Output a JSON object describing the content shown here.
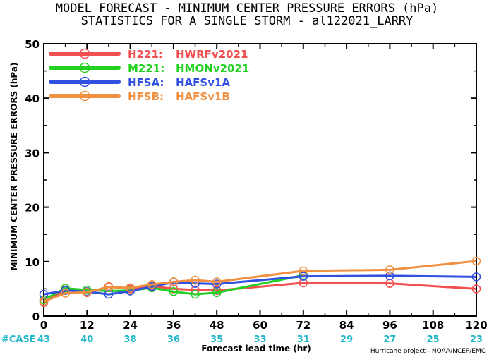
{
  "chart_data": {
    "type": "line",
    "title": "MODEL FORECAST - MINIMUM CENTER PRESSURE ERRORS (hPa)",
    "subtitle": "STATISTICS FOR A SINGLE STORM - al122021_LARRY",
    "xlabel": "Forecast lead time (hr)",
    "ylabel": "MINIMUM CENTER PRESSURE ERRORS (hPa)",
    "xlim": [
      0,
      120
    ],
    "ylim": [
      0,
      50
    ],
    "x_ticks": [
      0,
      12,
      24,
      36,
      48,
      60,
      72,
      84,
      96,
      108,
      120
    ],
    "y_ticks": [
      0,
      10,
      20,
      30,
      40,
      50
    ],
    "grid": false,
    "legend_position": "top-left",
    "case_label": "#CASE",
    "case_counts": [
      "43",
      "40",
      "38",
      "36",
      "35",
      "33",
      "31",
      "29",
      "27",
      "25",
      "23"
    ],
    "credit": "Hurricane project - NOAA/NCEP/EMC",
    "series": [
      {
        "name": "H221:  HWRFv2021",
        "code": "H221:",
        "model": "HWRFv2021",
        "color": "#f05050",
        "x": [
          0,
          6,
          12,
          18,
          24,
          30,
          36,
          42,
          48,
          72,
          96,
          120
        ],
        "y": [
          2.5,
          4.8,
          4.3,
          5.4,
          5.0,
          5.5,
          5.0,
          4.8,
          4.7,
          6.1,
          6.0,
          5.0
        ]
      },
      {
        "name": "M221:  HMONv2021",
        "code": "M221:",
        "model": "HMONv2021",
        "color": "#22d022",
        "x": [
          0,
          6,
          12,
          18,
          24,
          30,
          36,
          42,
          48,
          72
        ],
        "y": [
          3.0,
          5.1,
          4.8,
          4.6,
          4.7,
          5.2,
          4.5,
          4.0,
          4.3,
          7.5
        ]
      },
      {
        "name": "HFSA:  HAFSv1A",
        "code": "HFSA:",
        "model": "HAFSv1A",
        "color": "#3050e0",
        "x": [
          0,
          6,
          12,
          18,
          24,
          30,
          36,
          42,
          48,
          72,
          96,
          120
        ],
        "y": [
          4.0,
          4.7,
          4.5,
          4.0,
          4.6,
          5.4,
          6.2,
          6.0,
          5.9,
          7.3,
          7.4,
          7.2
        ]
      },
      {
        "name": "HFSB:  HAFSv1B",
        "code": "HFSB:",
        "model": "HAFSv1B",
        "color": "#f09040",
        "x": [
          0,
          6,
          12,
          18,
          24,
          30,
          36,
          42,
          48,
          72,
          96,
          120
        ],
        "y": [
          2.7,
          4.2,
          4.4,
          5.3,
          5.2,
          5.8,
          6.3,
          6.6,
          6.3,
          8.3,
          8.5,
          10.1
        ]
      }
    ]
  }
}
